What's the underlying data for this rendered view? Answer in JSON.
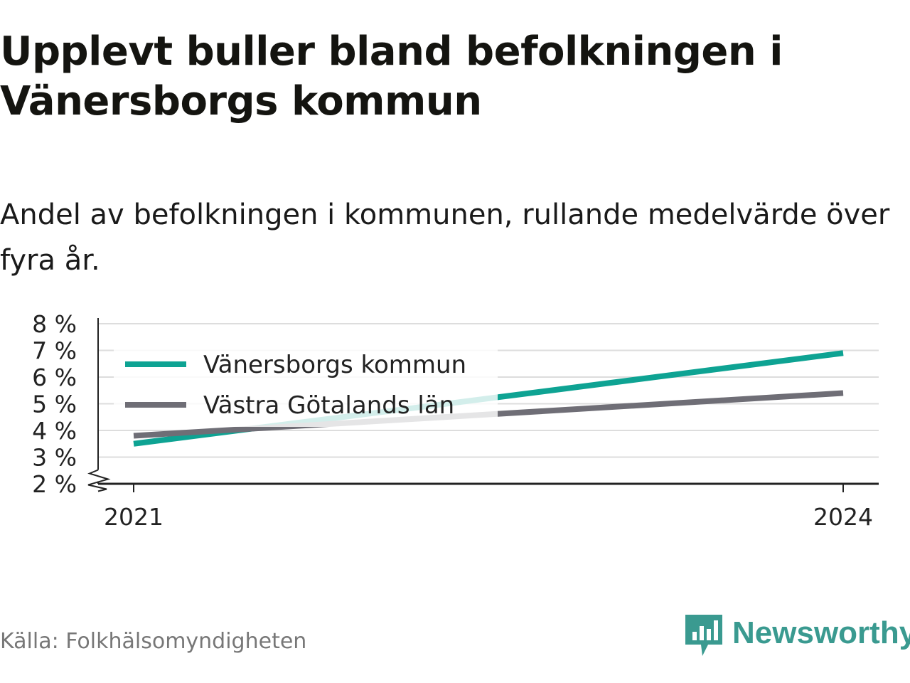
{
  "header": {
    "title": "Upplevt buller bland befolkningen i Vänersborgs kommun",
    "subtitle": "Andel av befolkningen i kommunen, rullande medelvärde över fyra år."
  },
  "chart_data": {
    "type": "line",
    "x": [
      2021,
      2024
    ],
    "x_tick_labels": [
      "2021",
      "2024"
    ],
    "series": [
      {
        "name": "Vänersborgs kommun",
        "values": [
          3.5,
          6.9
        ],
        "color": "#0ea393"
      },
      {
        "name": "Västra Götalands län",
        "values": [
          3.8,
          5.4
        ],
        "color": "#6f6e76"
      }
    ],
    "ylim": [
      2,
      8
    ],
    "y_ticks": [
      2,
      3,
      4,
      5,
      6,
      7,
      8
    ],
    "y_tick_labels": [
      "2 %",
      "3 %",
      "4 %",
      "5 %",
      "6 %",
      "7 %",
      "8 %"
    ],
    "y_axis_break": true,
    "grid": true,
    "legend_position": "top-left"
  },
  "footer": {
    "source": "Källa: Folkhälsomyndigheten",
    "brand": "Newsworthy",
    "brand_color": "#3a9a90",
    "brand_icon": "bar-chart-speech-bubble-icon"
  }
}
